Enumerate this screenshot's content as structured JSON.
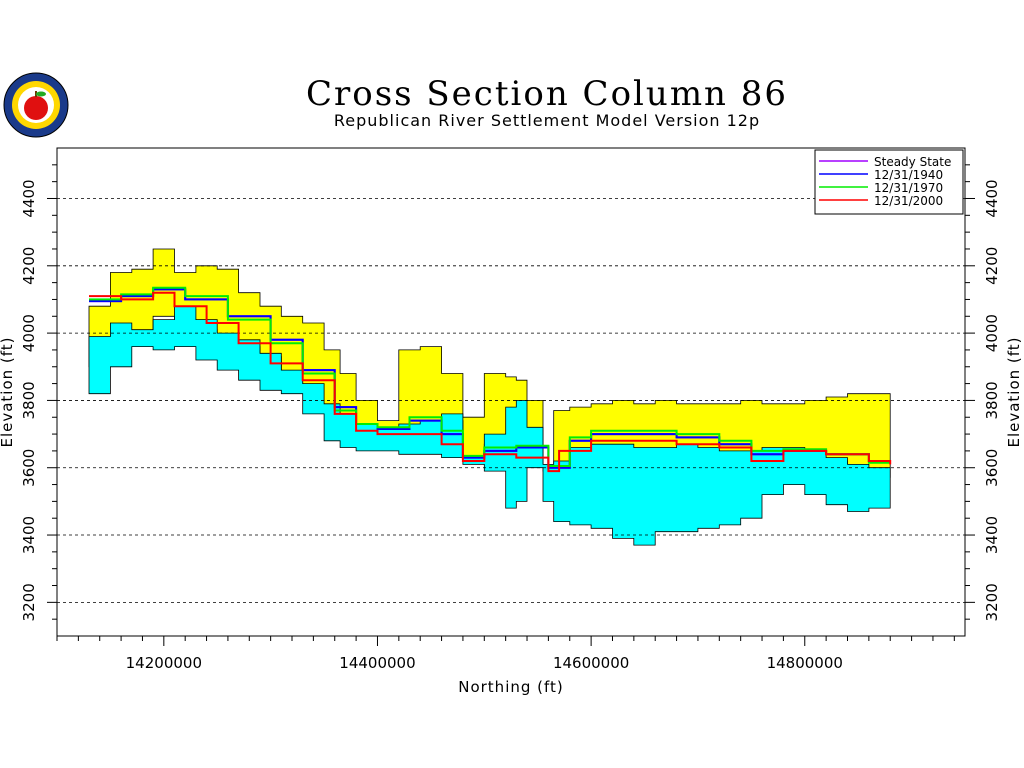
{
  "title": "Cross Section Column 86",
  "subtitle": "Republican River Settlement Model Version 12p",
  "chart_data": {
    "type": "line",
    "xlabel": "Northing (ft)",
    "ylabel": "Elevation (ft)",
    "xlim": [
      14100000,
      14950000
    ],
    "ylim": [
      3100,
      4550
    ],
    "x_ticks": [
      14200000,
      14400000,
      14600000,
      14800000
    ],
    "x_tick_labels": [
      "14200000",
      "14400000",
      "14600000",
      "14800000"
    ],
    "y_ticks": [
      3200,
      3400,
      3600,
      3800,
      4000,
      4200,
      4400
    ],
    "y_tick_labels": [
      "3200",
      "3400",
      "3600",
      "3800",
      "4000",
      "4200",
      "4400"
    ],
    "grid": "horizontal dashed",
    "legend_position": "top-right",
    "colors": {
      "upper_layer": "#ffff00",
      "lower_layer": "#00ffff",
      "steady_state": "#a000ff",
      "d1940": "#0000ff",
      "d1970": "#00ee00",
      "d2000": "#ff0000"
    },
    "layers": {
      "x": [
        14130000,
        14150000,
        14170000,
        14190000,
        14210000,
        14230000,
        14250000,
        14270000,
        14290000,
        14310000,
        14330000,
        14350000,
        14365000,
        14380000,
        14400000,
        14420000,
        14440000,
        14460000,
        14480000,
        14500000,
        14520000,
        14530000,
        14540000,
        14555000,
        14565000,
        14580000,
        14600000,
        14620000,
        14640000,
        14660000,
        14680000,
        14700000,
        14720000,
        14740000,
        14760000,
        14780000,
        14800000,
        14820000,
        14840000,
        14860000,
        14880000
      ],
      "upper_top": [
        4080,
        4180,
        4190,
        4250,
        4180,
        4200,
        4190,
        4120,
        4080,
        4050,
        4030,
        3950,
        3880,
        3800,
        3740,
        3950,
        3960,
        3880,
        3750,
        3880,
        3870,
        3860,
        3800,
        3600,
        3770,
        3780,
        3790,
        3800,
        3790,
        3800,
        3790,
        3790,
        3790,
        3800,
        3790,
        3790,
        3800,
        3810,
        3820,
        3820,
        3790
      ],
      "upper_bottom": [
        3900,
        3980,
        4000,
        4050,
        4040,
        4010,
        3990,
        3960,
        3930,
        3880,
        3840,
        3780,
        3760,
        3720,
        3710,
        3720,
        3730,
        3740,
        3620,
        3670,
        3660,
        3650,
        3640,
        3590,
        3600,
        3650,
        3660,
        3660,
        3650,
        3650,
        3660,
        3650,
        3640,
        3640,
        3650,
        3650,
        3640,
        3620,
        3600,
        3590,
        3570
      ],
      "lower_top": [
        3990,
        4030,
        4010,
        4040,
        4080,
        4040,
        4000,
        3980,
        3940,
        3890,
        3850,
        3790,
        3760,
        3730,
        3720,
        3730,
        3740,
        3760,
        3630,
        3700,
        3780,
        3800,
        3720,
        3610,
        3620,
        3660,
        3670,
        3670,
        3660,
        3660,
        3670,
        3660,
        3650,
        3650,
        3660,
        3660,
        3650,
        3630,
        3610,
        3600,
        3580
      ],
      "lower_bottom": [
        3820,
        3900,
        3960,
        3950,
        3960,
        3920,
        3890,
        3860,
        3830,
        3820,
        3760,
        3680,
        3660,
        3650,
        3650,
        3640,
        3640,
        3630,
        3610,
        3590,
        3480,
        3500,
        3600,
        3500,
        3440,
        3430,
        3420,
        3390,
        3370,
        3410,
        3410,
        3420,
        3430,
        3450,
        3520,
        3550,
        3520,
        3490,
        3470,
        3480,
        3490
      ]
    },
    "series": [
      {
        "name": "Steady State",
        "color": "#a000ff",
        "x": [
          14130000,
          14160000,
          14190000,
          14220000,
          14260000,
          14300000,
          14330000,
          14360000,
          14380000,
          14400000,
          14430000,
          14460000,
          14480000,
          14500000,
          14530000,
          14560000,
          14580000,
          14600000,
          14640000,
          14680000,
          14720000,
          14750000,
          14780000,
          14820000,
          14860000,
          14880000
        ],
        "y": [
          4095,
          4110,
          4130,
          4100,
          4050,
          3980,
          3890,
          3780,
          3730,
          3715,
          3740,
          3700,
          3630,
          3650,
          3660,
          3600,
          3680,
          3700,
          3700,
          3690,
          3670,
          3640,
          3650,
          3640,
          3620,
          3620
        ]
      },
      {
        "name": "12/31/1940",
        "color": "#0000ff",
        "x": [
          14130000,
          14160000,
          14190000,
          14220000,
          14260000,
          14300000,
          14330000,
          14360000,
          14380000,
          14400000,
          14430000,
          14460000,
          14480000,
          14500000,
          14530000,
          14560000,
          14580000,
          14600000,
          14640000,
          14680000,
          14720000,
          14750000,
          14780000,
          14820000,
          14860000,
          14880000
        ],
        "y": [
          4095,
          4110,
          4130,
          4100,
          4050,
          3980,
          3890,
          3780,
          3730,
          3715,
          3740,
          3700,
          3630,
          3650,
          3660,
          3600,
          3680,
          3700,
          3700,
          3690,
          3670,
          3640,
          3650,
          3640,
          3620,
          3620
        ]
      },
      {
        "name": "12/31/1970",
        "color": "#00ee00",
        "x": [
          14130000,
          14160000,
          14190000,
          14220000,
          14260000,
          14300000,
          14330000,
          14360000,
          14380000,
          14400000,
          14430000,
          14460000,
          14480000,
          14500000,
          14530000,
          14560000,
          14580000,
          14600000,
          14640000,
          14680000,
          14720000,
          14750000,
          14780000,
          14820000,
          14860000,
          14880000
        ],
        "y": [
          4100,
          4115,
          4135,
          4110,
          4040,
          3970,
          3880,
          3770,
          3730,
          3720,
          3750,
          3710,
          3635,
          3660,
          3665,
          3605,
          3690,
          3710,
          3710,
          3700,
          3680,
          3650,
          3655,
          3640,
          3615,
          3615
        ]
      },
      {
        "name": "12/31/2000",
        "color": "#ff0000",
        "x": [
          14130000,
          14160000,
          14190000,
          14210000,
          14240000,
          14270000,
          14300000,
          14330000,
          14360000,
          14380000,
          14400000,
          14430000,
          14460000,
          14480000,
          14500000,
          14530000,
          14560000,
          14570000,
          14600000,
          14640000,
          14680000,
          14720000,
          14750000,
          14780000,
          14820000,
          14860000,
          14880000
        ],
        "y": [
          4110,
          4100,
          4120,
          4080,
          4030,
          3970,
          3910,
          3860,
          3760,
          3710,
          3700,
          3700,
          3670,
          3620,
          3640,
          3630,
          3590,
          3650,
          3680,
          3680,
          3670,
          3660,
          3620,
          3650,
          3640,
          3620,
          3610
        ]
      }
    ]
  }
}
